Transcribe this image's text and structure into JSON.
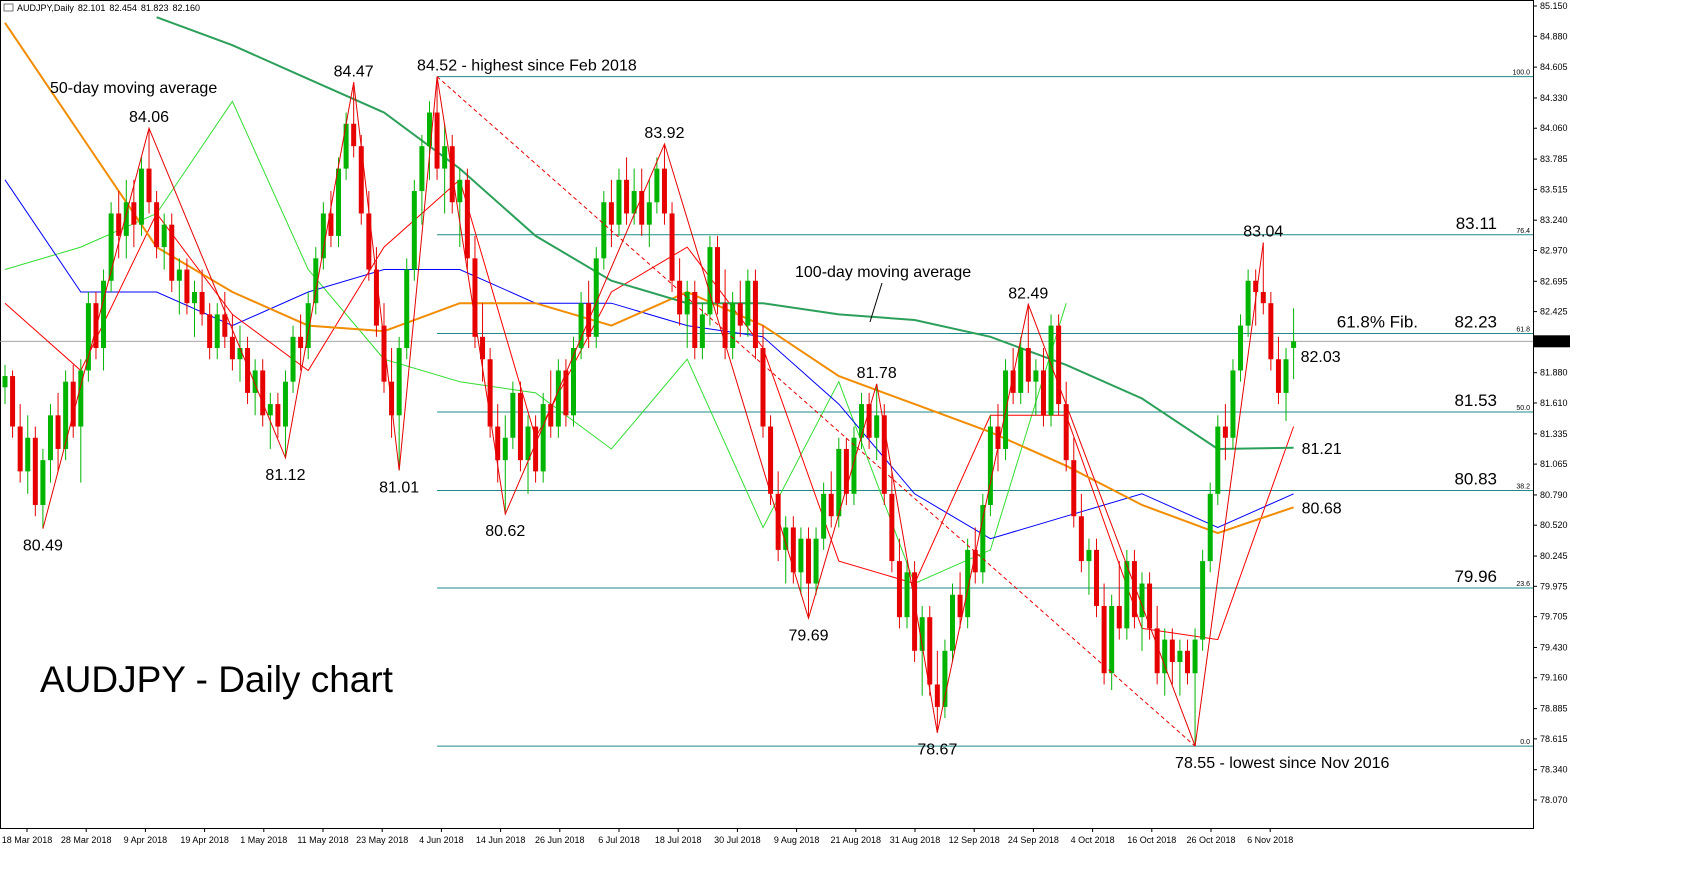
{
  "chart_data": {
    "type": "candlestick",
    "title": "AUDJPY - Daily chart",
    "header": {
      "symbol": "AUDJPY,Daily",
      "ohlc": [
        82.101,
        82.454,
        81.823,
        {
          "value": 82.16,
          "label": "82.160"
        }
      ]
    },
    "up_color": "#00b400",
    "down_color": "#e60000",
    "ylim": [
      77.82,
      85.2035
    ],
    "yticks": [
      {
        "value": 85.15,
        "label": "85.150"
      },
      {
        "value": 84.88,
        "label": "84.880"
      },
      {
        "value": 84.605,
        "label": "84.605"
      },
      {
        "value": 84.33,
        "label": "84.330"
      },
      {
        "value": 84.06,
        "label": "84.060"
      },
      {
        "value": 83.785,
        "label": "83.785"
      },
      {
        "value": 83.515,
        "label": "83.515"
      },
      {
        "value": 83.24,
        "label": "83.240"
      },
      {
        "value": 82.97,
        "label": "82.970"
      },
      {
        "value": 82.695,
        "label": "82.695"
      },
      {
        "value": 82.425,
        "label": "82.425"
      },
      {
        "value": 81.88,
        "label": "81.880"
      },
      {
        "value": 81.61,
        "label": "81.610"
      },
      {
        "value": 81.335,
        "label": "81.335"
      },
      {
        "value": 81.065,
        "label": "81.065"
      },
      {
        "value": 80.79,
        "label": "80.790"
      },
      {
        "value": 80.52,
        "label": "80.520"
      },
      {
        "value": 80.245,
        "label": "80.245"
      },
      {
        "value": 79.975,
        "label": "79.975"
      },
      {
        "value": 79.705,
        "label": "79.705"
      },
      {
        "value": 79.43,
        "label": "79.430"
      },
      {
        "value": 79.16,
        "label": "79.160"
      },
      {
        "value": 78.885,
        "label": "78.885"
      },
      {
        "value": 78.615,
        "label": "78.615"
      },
      {
        "value": 78.34,
        "label": "78.340"
      },
      {
        "value": 78.07,
        "label": "78.070"
      }
    ],
    "current_price": {
      "value": 82.16,
      "label": "82.160"
    },
    "x_tick_labels": [
      "18 Mar 2018",
      "28 Mar 2018",
      "9 Apr 2018",
      "19 Apr 2018",
      "1 May 2018",
      "11 May 2018",
      "23 May 2018",
      "4 Jun 2018",
      "14 Jun 2018",
      "26 Jun 2018",
      "6 Jul 2018",
      "18 Jul 2018",
      "30 Jul 2018",
      "9 Aug 2018",
      "21 Aug 2018",
      "31 Aug 2018",
      "12 Sep 2018",
      "24 Sep 2018",
      "4 Oct 2018",
      "16 Oct 2018",
      "26 Oct 2018",
      "6 Nov 2018"
    ],
    "candles": [
      [
        81.75,
        81.95,
        81.6,
        81.85
      ],
      [
        81.85,
        81.9,
        81.3,
        81.4
      ],
      [
        81.4,
        81.6,
        80.9,
        81.0
      ],
      [
        81.0,
        81.5,
        80.8,
        81.3
      ],
      [
        81.3,
        81.4,
        80.6,
        80.7
      ],
      [
        80.7,
        81.2,
        80.49,
        81.1
      ],
      [
        81.1,
        81.6,
        80.9,
        81.5
      ],
      [
        81.5,
        81.7,
        81.0,
        81.2
      ],
      [
        81.2,
        81.9,
        81.1,
        81.8
      ],
      [
        81.8,
        81.95,
        81.3,
        81.4
      ],
      [
        81.4,
        82.0,
        80.9,
        81.9
      ],
      [
        81.9,
        82.6,
        81.8,
        82.5
      ],
      [
        82.5,
        82.6,
        82.0,
        82.1
      ],
      [
        82.1,
        82.8,
        81.9,
        82.7
      ],
      [
        82.7,
        83.4,
        82.6,
        83.3
      ],
      [
        83.3,
        83.5,
        82.9,
        83.1
      ],
      [
        83.1,
        83.6,
        82.9,
        83.4
      ],
      [
        83.4,
        83.6,
        83.0,
        83.2
      ],
      [
        83.2,
        83.8,
        83.1,
        83.7
      ],
      [
        83.7,
        84.06,
        83.3,
        83.4
      ],
      [
        83.4,
        83.5,
        82.9,
        83.0
      ],
      [
        83.0,
        83.3,
        82.8,
        83.2
      ],
      [
        83.2,
        83.3,
        82.6,
        82.7
      ],
      [
        82.7,
        82.9,
        82.4,
        82.8
      ],
      [
        82.8,
        82.9,
        82.4,
        82.5
      ],
      [
        82.5,
        82.7,
        82.2,
        82.6
      ],
      [
        82.6,
        82.8,
        82.3,
        82.4
      ],
      [
        82.4,
        82.5,
        82.0,
        82.1
      ],
      [
        82.1,
        82.5,
        82.0,
        82.4
      ],
      [
        82.4,
        82.6,
        82.1,
        82.2
      ],
      [
        82.2,
        82.4,
        81.9,
        82.0
      ],
      [
        82.0,
        82.3,
        81.8,
        82.1
      ],
      [
        82.1,
        82.2,
        81.6,
        81.7
      ],
      [
        81.7,
        82.0,
        81.5,
        81.9
      ],
      [
        81.9,
        82.0,
        81.4,
        81.5
      ],
      [
        81.5,
        81.7,
        81.2,
        81.6
      ],
      [
        81.6,
        81.7,
        81.3,
        81.4
      ],
      [
        81.4,
        81.9,
        81.12,
        81.8
      ],
      [
        81.8,
        82.3,
        81.7,
        82.2
      ],
      [
        82.2,
        82.4,
        81.9,
        82.1
      ],
      [
        82.1,
        82.6,
        82.0,
        82.5
      ],
      [
        82.5,
        83.0,
        82.4,
        82.9
      ],
      [
        82.9,
        83.4,
        82.8,
        83.3
      ],
      [
        83.3,
        83.5,
        83.0,
        83.1
      ],
      [
        83.1,
        83.8,
        83.0,
        83.7
      ],
      [
        83.7,
        84.2,
        83.6,
        84.1
      ],
      [
        84.1,
        84.47,
        83.8,
        83.9
      ],
      [
        83.9,
        84.0,
        83.2,
        83.3
      ],
      [
        83.3,
        83.5,
        82.7,
        82.8
      ],
      [
        82.8,
        83.0,
        82.2,
        82.3
      ],
      [
        82.3,
        82.5,
        81.7,
        81.8
      ],
      [
        81.8,
        82.1,
        81.3,
        81.5
      ],
      [
        81.5,
        82.2,
        81.01,
        82.1
      ],
      [
        82.1,
        82.9,
        82.0,
        82.8
      ],
      [
        82.8,
        83.6,
        82.7,
        83.5
      ],
      [
        83.5,
        84.0,
        83.2,
        83.9
      ],
      [
        83.9,
        84.3,
        83.6,
        84.2
      ],
      [
        84.2,
        84.52,
        83.6,
        83.7
      ],
      [
        83.7,
        84.1,
        83.3,
        83.9
      ],
      [
        83.9,
        84.0,
        83.3,
        83.4
      ],
      [
        83.4,
        83.7,
        83.0,
        83.6
      ],
      [
        83.6,
        83.7,
        82.8,
        82.9
      ],
      [
        82.9,
        83.1,
        82.1,
        82.2
      ],
      [
        82.2,
        82.5,
        81.8,
        82.0
      ],
      [
        82.0,
        82.1,
        81.3,
        81.4
      ],
      [
        81.4,
        81.6,
        80.9,
        81.1
      ],
      [
        81.1,
        81.5,
        80.62,
        81.3
      ],
      [
        81.3,
        81.8,
        81.2,
        81.7
      ],
      [
        81.7,
        81.8,
        81.0,
        81.1
      ],
      [
        81.1,
        81.5,
        80.8,
        81.4
      ],
      [
        81.4,
        81.5,
        80.9,
        81.0
      ],
      [
        81.0,
        81.7,
        80.9,
        81.6
      ],
      [
        81.6,
        81.9,
        81.3,
        81.4
      ],
      [
        81.4,
        82.0,
        81.3,
        81.9
      ],
      [
        81.9,
        82.0,
        81.4,
        81.5
      ],
      [
        81.5,
        82.2,
        81.4,
        82.1
      ],
      [
        82.1,
        82.6,
        82.0,
        82.5
      ],
      [
        82.5,
        82.7,
        82.1,
        82.2
      ],
      [
        82.2,
        83.0,
        82.1,
        82.9
      ],
      [
        82.9,
        83.5,
        82.8,
        83.4
      ],
      [
        83.4,
        83.6,
        83.0,
        83.2
      ],
      [
        83.2,
        83.7,
        83.1,
        83.6
      ],
      [
        83.6,
        83.8,
        83.2,
        83.3
      ],
      [
        83.3,
        83.7,
        83.2,
        83.5
      ],
      [
        83.5,
        83.7,
        83.1,
        83.2
      ],
      [
        83.2,
        83.6,
        83.0,
        83.4
      ],
      [
        83.4,
        83.8,
        83.3,
        83.7
      ],
      [
        83.7,
        83.92,
        83.2,
        83.3
      ],
      [
        83.3,
        83.4,
        82.6,
        82.7
      ],
      [
        82.7,
        82.9,
        82.3,
        82.4
      ],
      [
        82.4,
        82.7,
        82.1,
        82.6
      ],
      [
        82.6,
        82.7,
        82.0,
        82.1
      ],
      [
        82.1,
        82.5,
        82.0,
        82.4
      ],
      [
        82.4,
        83.1,
        82.3,
        83.0
      ],
      [
        83.0,
        83.1,
        82.4,
        82.5
      ],
      [
        82.5,
        82.8,
        82.0,
        82.1
      ],
      [
        82.1,
        82.6,
        82.0,
        82.5
      ],
      [
        82.5,
        82.7,
        82.2,
        82.3
      ],
      [
        82.3,
        82.8,
        82.2,
        82.7
      ],
      [
        82.7,
        82.8,
        82.0,
        82.1
      ],
      [
        82.1,
        82.3,
        81.3,
        81.4
      ],
      [
        81.4,
        81.5,
        80.7,
        80.8
      ],
      [
        80.8,
        81.0,
        80.2,
        80.3
      ],
      [
        80.3,
        80.6,
        80.0,
        80.5
      ],
      [
        80.5,
        80.6,
        80.0,
        80.1
      ],
      [
        80.1,
        80.5,
        79.9,
        80.4
      ],
      [
        80.4,
        80.5,
        79.69,
        80.0
      ],
      [
        80.0,
        80.5,
        79.9,
        80.4
      ],
      [
        80.4,
        80.9,
        80.3,
        80.8
      ],
      [
        80.8,
        81.0,
        80.5,
        80.6
      ],
      [
        80.6,
        81.3,
        80.5,
        81.2
      ],
      [
        81.2,
        81.3,
        80.7,
        80.8
      ],
      [
        80.8,
        81.4,
        80.7,
        81.3
      ],
      [
        81.3,
        81.7,
        81.2,
        81.6
      ],
      [
        81.6,
        81.7,
        81.2,
        81.3
      ],
      [
        81.3,
        81.78,
        81.1,
        81.5
      ],
      [
        81.5,
        81.6,
        80.7,
        80.8
      ],
      [
        80.8,
        81.0,
        80.1,
        80.2
      ],
      [
        80.2,
        80.4,
        79.6,
        79.7
      ],
      [
        79.7,
        80.2,
        79.6,
        80.1
      ],
      [
        80.1,
        80.2,
        79.3,
        79.4
      ],
      [
        79.4,
        79.8,
        79.0,
        79.7
      ],
      [
        79.7,
        79.8,
        79.0,
        79.1
      ],
      [
        79.1,
        79.4,
        78.67,
        78.9
      ],
      [
        78.9,
        79.5,
        78.8,
        79.4
      ],
      [
        79.4,
        80.0,
        79.3,
        79.9
      ],
      [
        79.9,
        80.1,
        79.6,
        79.7
      ],
      [
        79.7,
        80.4,
        79.6,
        80.3
      ],
      [
        80.3,
        80.5,
        80.0,
        80.1
      ],
      [
        80.1,
        80.8,
        80.0,
        80.7
      ],
      [
        80.7,
        81.5,
        80.6,
        81.4
      ],
      [
        81.4,
        81.6,
        81.0,
        81.2
      ],
      [
        81.2,
        82.0,
        81.1,
        81.9
      ],
      [
        81.9,
        82.1,
        81.6,
        81.7
      ],
      [
        81.7,
        82.2,
        81.6,
        82.1
      ],
      [
        82.1,
        82.49,
        81.7,
        81.8
      ],
      [
        81.8,
        82.0,
        81.5,
        81.9
      ],
      [
        81.9,
        82.1,
        81.4,
        81.5
      ],
      [
        81.5,
        82.4,
        81.4,
        82.3
      ],
      [
        82.3,
        82.4,
        81.5,
        81.6
      ],
      [
        81.6,
        81.8,
        81.0,
        81.1
      ],
      [
        81.1,
        81.3,
        80.5,
        80.6
      ],
      [
        80.6,
        80.8,
        80.1,
        80.2
      ],
      [
        80.2,
        80.4,
        79.9,
        80.3
      ],
      [
        80.3,
        80.4,
        79.7,
        79.8
      ],
      [
        79.8,
        80.0,
        79.1,
        79.2
      ],
      [
        79.2,
        79.9,
        79.05,
        79.8
      ],
      [
        79.8,
        80.2,
        79.5,
        79.6
      ],
      [
        79.6,
        80.3,
        79.5,
        80.2
      ],
      [
        80.2,
        80.3,
        79.6,
        79.7
      ],
      [
        79.7,
        80.1,
        79.4,
        80.0
      ],
      [
        80.0,
        80.1,
        79.5,
        79.6
      ],
      [
        79.6,
        79.8,
        79.1,
        79.2
      ],
      [
        79.2,
        79.6,
        79.0,
        79.5
      ],
      [
        79.5,
        79.6,
        79.1,
        79.3
      ],
      [
        79.3,
        79.5,
        79.0,
        79.4
      ],
      [
        79.4,
        79.5,
        79.1,
        79.2
      ],
      [
        79.2,
        79.6,
        78.55,
        79.5
      ],
      [
        79.5,
        80.3,
        79.4,
        80.2
      ],
      [
        80.2,
        80.9,
        80.1,
        80.8
      ],
      [
        80.8,
        81.5,
        80.7,
        81.4
      ],
      [
        81.4,
        81.6,
        81.1,
        81.3
      ],
      [
        81.3,
        82.0,
        81.2,
        81.9
      ],
      [
        81.9,
        82.4,
        81.8,
        82.3
      ],
      [
        82.3,
        82.8,
        82.2,
        82.7
      ],
      [
        82.7,
        82.8,
        82.3,
        82.6
      ],
      [
        82.6,
        83.04,
        82.4,
        82.5
      ],
      [
        82.5,
        82.6,
        81.9,
        82.0
      ],
      [
        82.0,
        82.2,
        81.6,
        81.7
      ],
      [
        81.7,
        82.1,
        81.45,
        82.0
      ],
      [
        82.101,
        82.454,
        81.823,
        82.16
      ]
    ],
    "series": [
      {
        "color": "#33dd33",
        "width": 1,
        "values": [
          82.8,
          83.0,
          83.3,
          84.3,
          82.8,
          82.0,
          81.8,
          81.7,
          81.2,
          82.0,
          80.5,
          81.8,
          80.0,
          80.3,
          82.5,
          null,
          null,
          null
        ]
      },
      {
        "color": "#0000ff",
        "width": 1,
        "values": [
          83.6,
          82.6,
          82.6,
          82.3,
          82.6,
          82.8,
          82.8,
          82.5,
          82.5,
          82.3,
          82.2,
          81.6,
          80.8,
          80.4,
          80.6,
          80.8,
          80.5,
          80.8
        ]
      },
      {
        "color": "#ff0000",
        "width": 1,
        "values": [
          82.5,
          81.9,
          83.3,
          82.4,
          81.9,
          83.0,
          83.6,
          81.3,
          82.6,
          83.0,
          82.1,
          80.2,
          80.0,
          81.5,
          81.5,
          79.6,
          79.5,
          81.4
        ]
      },
      {
        "name": "50-day moving average",
        "color": "#f28c00",
        "width": 2,
        "values": [
          85.0,
          84.0,
          83.0,
          82.6,
          82.3,
          82.25,
          82.5,
          82.5,
          82.3,
          82.6,
          82.3,
          81.85,
          81.6,
          81.35,
          81.05,
          80.7,
          80.45,
          80.68
        ],
        "end_value": 80.68
      },
      {
        "name": "100-day moving average",
        "color": "#2ca05a",
        "width": 2,
        "values": [
          null,
          null,
          85.05,
          84.8,
          84.5,
          84.2,
          83.7,
          83.1,
          82.7,
          82.5,
          82.5,
          82.4,
          82.35,
          82.2,
          81.95,
          81.65,
          81.2,
          81.21
        ],
        "end_value": 81.21
      }
    ],
    "pivots": [
      80.49,
      84.06,
      81.12,
      84.47,
      81.01,
      {
        "value": 84.52,
        "label": "84.52 - highest since Feb 2018"
      },
      80.62,
      83.92,
      79.69,
      81.78,
      78.67,
      82.49,
      {
        "value": 78.55,
        "label": "78.55 - lowest since Nov 2016"
      },
      83.04
    ],
    "pivot_color": "#e60000",
    "trendline": {
      "from": 84.52,
      "to": 78.55,
      "color": "#e60000",
      "dashed": true
    },
    "price_note": 82.03,
    "fib_color": "#1f8a8a",
    "fib_levels": [
      {
        "ratio": "100.0",
        "value": 84.52
      },
      {
        "ratio": "76.4",
        "value": 83.11,
        "value_label": "83.11"
      },
      {
        "ratio": "61.8",
        "value": 82.23,
        "value_label": "82.23",
        "caption": "61.8% Fib."
      },
      {
        "ratio": "50.0",
        "value": 81.53,
        "value_label": "81.53"
      },
      {
        "ratio": "38.2",
        "value": 80.83,
        "value_label": "80.83"
      },
      {
        "ratio": "23.6",
        "value": 79.96,
        "value_label": "79.96"
      },
      {
        "ratio": "0.0",
        "value": 78.55
      }
    ]
  }
}
